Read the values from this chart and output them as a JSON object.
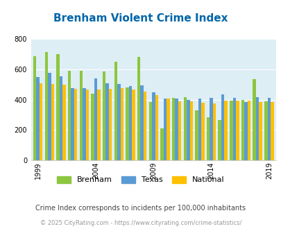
{
  "title": "Brenham Violent Crime Index",
  "subtitle": "Crime Index corresponds to incidents per 100,000 inhabitants",
  "copyright": "© 2025 CityRating.com - https://www.cityrating.com/crime-statistics/",
  "plot_years": [
    1999,
    2000,
    2001,
    2002,
    2003,
    2004,
    2005,
    2006,
    2007,
    2008,
    2009,
    2010,
    2011,
    2012,
    2013,
    2014,
    2015,
    2016,
    2017,
    2018,
    2019
  ],
  "brenham": [
    685,
    715,
    700,
    590,
    590,
    440,
    585,
    650,
    480,
    680,
    385,
    210,
    410,
    415,
    330,
    285,
    265,
    395,
    400,
    535,
    390
  ],
  "texas": [
    550,
    575,
    555,
    475,
    475,
    540,
    510,
    505,
    490,
    495,
    450,
    405,
    405,
    400,
    405,
    410,
    435,
    410,
    385,
    415,
    410
  ],
  "national": [
    510,
    505,
    500,
    470,
    465,
    465,
    470,
    475,
    465,
    455,
    430,
    405,
    390,
    390,
    380,
    375,
    395,
    395,
    395,
    385,
    385
  ],
  "bar_colors": [
    "#8dc63f",
    "#5b9bd5",
    "#ffc000"
  ],
  "bg_color": "#ddeef5",
  "ylim": [
    0,
    800
  ],
  "yticks": [
    0,
    200,
    400,
    600,
    800
  ],
  "title_color": "#0066aa",
  "tick_years": [
    1999,
    2004,
    2009,
    2014,
    2019
  ],
  "legend_labels": [
    "Brenham",
    "Texas",
    "National"
  ],
  "subtitle_color": "#444444",
  "copyright_color": "#999999",
  "title_fontsize": 11,
  "legend_fontsize": 8,
  "subtitle_fontsize": 7,
  "copyright_fontsize": 6
}
